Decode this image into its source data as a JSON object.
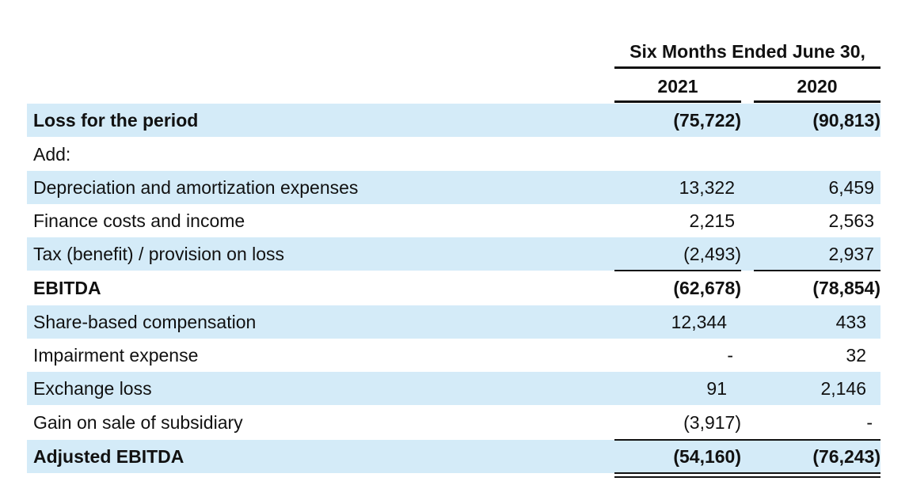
{
  "header": {
    "title": "Six Months Ended June 30,",
    "years": [
      "2021",
      "2020"
    ]
  },
  "rows": [
    {
      "label": "Loss for the period",
      "v2021": "(75,722)",
      "v2020": "(90,813)",
      "bold": true,
      "shaded": true
    },
    {
      "label": "Add:",
      "v2021": "",
      "v2020": "",
      "bold": false,
      "shaded": false
    },
    {
      "label": "Depreciation and amortization expenses",
      "v2021": "13,322",
      "v2020": "6,459",
      "bold": false,
      "shaded": true
    },
    {
      "label": "Finance costs and income",
      "v2021": "2,215",
      "v2020": "2,563",
      "bold": false,
      "shaded": false
    },
    {
      "label": "Tax (benefit) / provision on loss",
      "v2021": "(2,493)",
      "v2020": "2,937",
      "bold": false,
      "shaded": true
    },
    {
      "label": "EBITDA",
      "v2021": "(62,678)",
      "v2020": "(78,854)",
      "bold": true,
      "shaded": false
    },
    {
      "label": "Share-based compensation",
      "v2021": "12,344",
      "v2020": "433",
      "bold": false,
      "shaded": true
    },
    {
      "label": "Impairment expense",
      "v2021": "-",
      "v2020": "32",
      "bold": false,
      "shaded": false
    },
    {
      "label": "Exchange loss",
      "v2021": "91",
      "v2020": "2,146",
      "bold": false,
      "shaded": true
    },
    {
      "label": "Gain on sale of subsidiary",
      "v2021": "(3,917)",
      "v2020": "-",
      "bold": false,
      "shaded": false
    },
    {
      "label": "Adjusted EBITDA",
      "v2021": "(54,160)",
      "v2020": "(76,243)",
      "bold": true,
      "shaded": true
    }
  ],
  "colors": {
    "row_shade": "#d4ebf8",
    "rule": "#111111"
  }
}
